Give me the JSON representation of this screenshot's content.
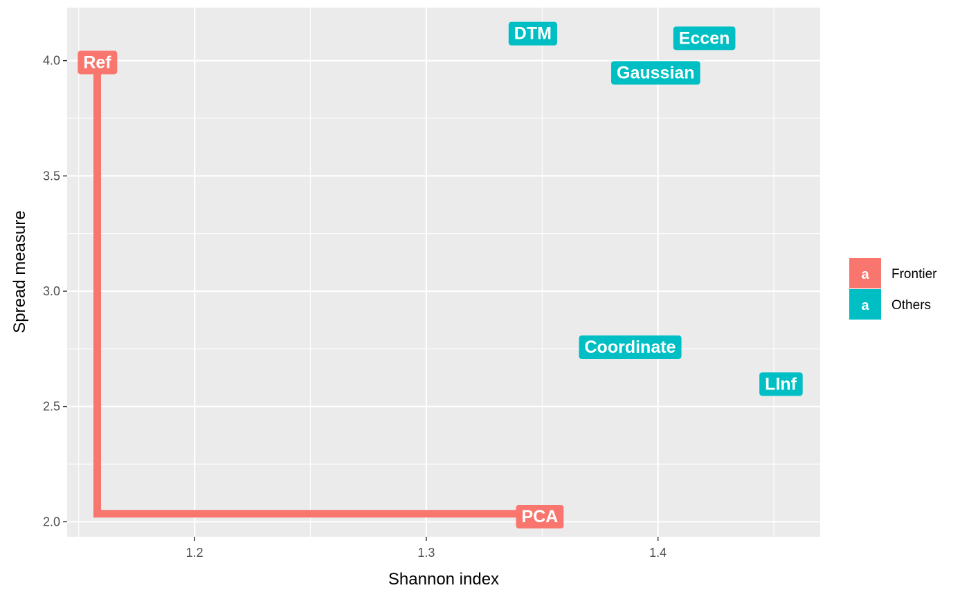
{
  "chart_data": {
    "type": "scatter",
    "xlabel": "Shannon index",
    "ylabel": "Spread measure",
    "xlim": [
      1.145,
      1.47
    ],
    "ylim": [
      1.935,
      4.23
    ],
    "x_ticks": [
      1.2,
      1.3,
      1.4
    ],
    "x_tick_labels": [
      "1.2",
      "1.3",
      "1.4"
    ],
    "y_ticks": [
      2.0,
      2.5,
      3.0,
      3.5,
      4.0
    ],
    "y_tick_labels": [
      "2.0",
      "2.5",
      "3.0",
      "3.5",
      "4.0"
    ],
    "grid": true,
    "legend_position": "right",
    "colors": {
      "Frontier": "#F8766D",
      "Others": "#00BFC4"
    },
    "points": [
      {
        "label": "Ref",
        "x": 1.158,
        "y": 3.995,
        "group": "Frontier"
      },
      {
        "label": "PCA",
        "x": 1.349,
        "y": 2.025,
        "group": "Frontier"
      },
      {
        "label": "DTM",
        "x": 1.346,
        "y": 4.12,
        "group": "Others"
      },
      {
        "label": "Eccen",
        "x": 1.42,
        "y": 4.1,
        "group": "Others"
      },
      {
        "label": "Gaussian",
        "x": 1.399,
        "y": 3.95,
        "group": "Others"
      },
      {
        "label": "Coordinate",
        "x": 1.388,
        "y": 2.76,
        "group": "Others"
      },
      {
        "label": "LInf",
        "x": 1.453,
        "y": 2.6,
        "group": "Others"
      }
    ],
    "frontier_line": [
      {
        "x": 1.158,
        "y": 3.995
      },
      {
        "x": 1.158,
        "y": 2.035
      },
      {
        "x": 1.349,
        "y": 2.035
      }
    ],
    "legend": [
      {
        "key_text": "a",
        "label": "Frontier",
        "group": "Frontier"
      },
      {
        "key_text": "a",
        "label": "Others",
        "group": "Others"
      }
    ]
  }
}
